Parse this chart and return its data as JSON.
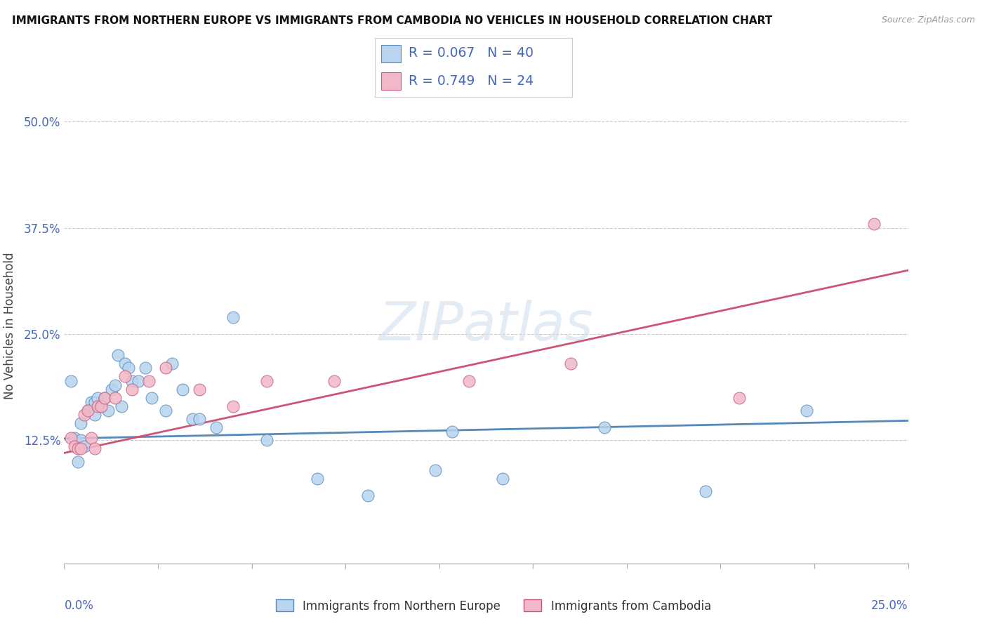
{
  "title": "IMMIGRANTS FROM NORTHERN EUROPE VS IMMIGRANTS FROM CAMBODIA NO VEHICLES IN HOUSEHOLD CORRELATION CHART",
  "source": "Source: ZipAtlas.com",
  "ylabel": "No Vehicles in Household",
  "xlim": [
    0.0,
    0.25
  ],
  "ylim": [
    -0.02,
    0.54
  ],
  "ytick_values": [
    0.125,
    0.25,
    0.375,
    0.5
  ],
  "ytick_labels": [
    "12.5%",
    "25.0%",
    "37.5%",
    "50.0%"
  ],
  "legend_blue_R": "0.067",
  "legend_blue_N": "40",
  "legend_pink_R": "0.749",
  "legend_pink_N": "24",
  "blue_face": "#b8d4ee",
  "blue_edge": "#5588bb",
  "pink_face": "#f0b8c8",
  "pink_edge": "#cc5577",
  "blue_line": "#5588bb",
  "pink_line": "#cc5577",
  "tick_color": "#4466bb",
  "ne_x": [
    0.002,
    0.003,
    0.004,
    0.005,
    0.005,
    0.006,
    0.007,
    0.008,
    0.009,
    0.009,
    0.01,
    0.011,
    0.012,
    0.013,
    0.014,
    0.015,
    0.016,
    0.017,
    0.018,
    0.019,
    0.02,
    0.022,
    0.024,
    0.026,
    0.03,
    0.032,
    0.035,
    0.038,
    0.04,
    0.045,
    0.05,
    0.06,
    0.075,
    0.09,
    0.11,
    0.13,
    0.115,
    0.16,
    0.19,
    0.22
  ],
  "ne_y": [
    0.195,
    0.128,
    0.1,
    0.145,
    0.125,
    0.118,
    0.16,
    0.17,
    0.155,
    0.17,
    0.175,
    0.165,
    0.175,
    0.16,
    0.185,
    0.19,
    0.225,
    0.165,
    0.215,
    0.21,
    0.195,
    0.195,
    0.21,
    0.175,
    0.16,
    0.215,
    0.185,
    0.15,
    0.15,
    0.14,
    0.27,
    0.125,
    0.08,
    0.06,
    0.09,
    0.08,
    0.135,
    0.14,
    0.065,
    0.16
  ],
  "cam_x": [
    0.002,
    0.003,
    0.004,
    0.005,
    0.006,
    0.007,
    0.008,
    0.009,
    0.01,
    0.011,
    0.012,
    0.015,
    0.018,
    0.02,
    0.025,
    0.03,
    0.04,
    0.05,
    0.06,
    0.08,
    0.12,
    0.15,
    0.2,
    0.24
  ],
  "cam_y": [
    0.128,
    0.118,
    0.115,
    0.115,
    0.155,
    0.16,
    0.128,
    0.115,
    0.165,
    0.165,
    0.175,
    0.175,
    0.2,
    0.185,
    0.195,
    0.21,
    0.185,
    0.165,
    0.195,
    0.195,
    0.195,
    0.215,
    0.175,
    0.38
  ]
}
